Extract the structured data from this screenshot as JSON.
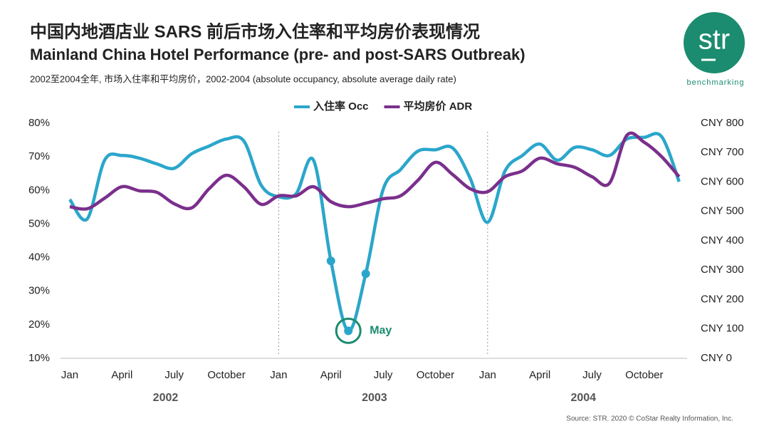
{
  "chart_data": {
    "type": "line",
    "title": "中国内地酒店业 SARS 前后市场入住率和平均房价表现情况",
    "subtitle": "Mainland China Hotel Performance (pre- and post-SARS Outbreak)",
    "caption": "2002至2004全年, 市场入住率和平均房价，2002-2004 (absolute occupancy, absolute average daily rate)",
    "source": "Source: STR. 2020 © CoStar Realty Information, Inc.",
    "logo": "str",
    "logo_tagline": "benchmarking",
    "annotation": "May",
    "x_group_labels": [
      "2002",
      "2003",
      "2004"
    ],
    "categories": [
      "Jan",
      null,
      null,
      "April",
      null,
      null,
      "July",
      null,
      null,
      "October",
      null,
      null,
      "Jan",
      null,
      null,
      "April",
      null,
      null,
      "July",
      null,
      null,
      "October",
      null,
      null,
      "Jan",
      null,
      null,
      "April",
      null,
      null,
      "July",
      null,
      null,
      "October",
      null,
      null
    ],
    "series": [
      {
        "name": "入住率 Occ",
        "color": "#2ba6cb",
        "values": [
          57.3,
          51.5,
          69,
          70.4,
          69.6,
          67.9,
          66.6,
          70.9,
          73.2,
          75.3,
          74.7,
          61.5,
          58.1,
          59,
          69,
          39,
          18.2,
          35.2,
          60.3,
          66.2,
          71.7,
          72.1,
          72.6,
          63.6,
          50.5,
          65.8,
          70.4,
          73.8,
          69,
          72.8,
          72.1,
          70.4,
          75.3,
          75.8,
          76,
          62.6
        ]
      },
      {
        "name": "平均房价 ADR",
        "color": "#7b2f8c",
        "axis": "y2",
        "values": [
          516,
          509,
          545,
          584,
          570,
          565,
          526,
          512,
          577,
          623,
          584,
          524,
          553,
          553,
          584,
          533,
          516,
          528,
          543,
          553,
          606,
          667,
          625,
          577,
          567,
          618,
          638,
          681,
          662,
          650,
          618,
          596,
          759,
          735,
          686,
          618
        ]
      }
    ],
    "ylim": [
      10,
      80
    ],
    "yticks": [
      {
        "value": 10,
        "label": "10%"
      },
      {
        "value": 20,
        "label": "20%"
      },
      {
        "value": 30,
        "label": "30%"
      },
      {
        "value": 40,
        "label": "40%"
      },
      {
        "value": 50,
        "label": "50%"
      },
      {
        "value": 60,
        "label": "60%"
      },
      {
        "value": 70,
        "label": "70%"
      },
      {
        "value": 80,
        "label": "80%"
      }
    ],
    "y2lim": [
      0,
      800
    ],
    "y2ticks": [
      {
        "value": 0,
        "label": "CNY 0"
      },
      {
        "value": 100,
        "label": "CNY 100"
      },
      {
        "value": 200,
        "label": "CNY 200"
      },
      {
        "value": 300,
        "label": "CNY 300"
      },
      {
        "value": 400,
        "label": "CNY 400"
      },
      {
        "value": 500,
        "label": "CNY 500"
      },
      {
        "value": 600,
        "label": "CNY 600"
      },
      {
        "value": 700,
        "label": "CNY 700"
      },
      {
        "value": 800,
        "label": "CNY 800"
      }
    ],
    "grid": false,
    "legend": "top"
  }
}
